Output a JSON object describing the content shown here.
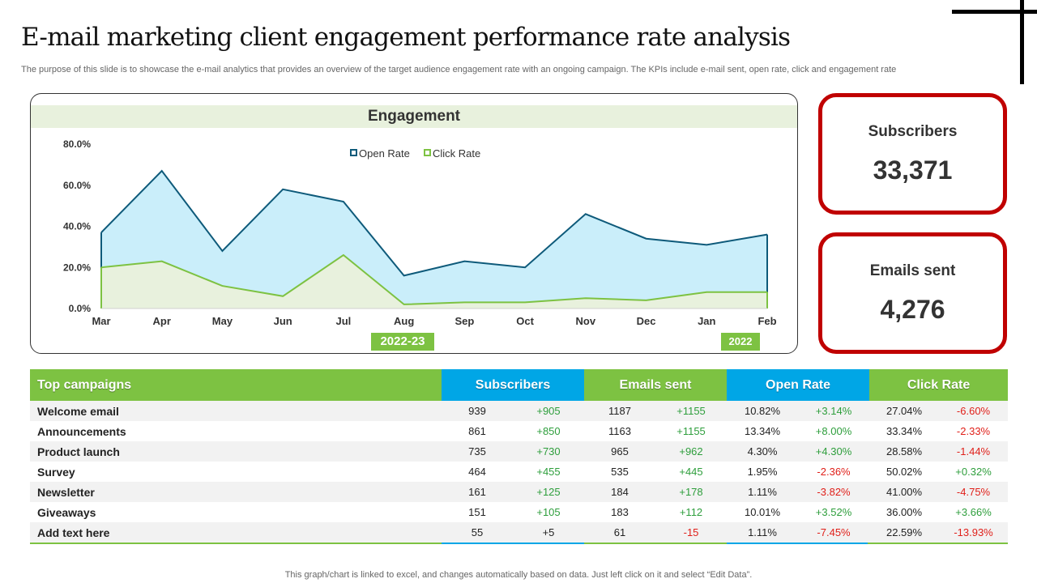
{
  "slide": {
    "title": "E-mail marketing client engagement performance rate analysis",
    "subtitle": "The purpose of this slide is to showcase the e-mail analytics that provides an overview of the target audience engagement rate with an ongoing campaign. The KPIs include e-mail sent, open rate, click and engagement rate",
    "footnote": "This graph/chart is linked to excel,  and changes automatically based on data. Just left click on it and select “Edit Data”."
  },
  "chart_data": {
    "type": "area",
    "title": "Engagement",
    "categories": [
      "Mar",
      "Apr",
      "May",
      "Jun",
      "Jul",
      "Aug",
      "Sep",
      "Oct",
      "Nov",
      "Dec",
      "Jan",
      "Feb"
    ],
    "series": [
      {
        "name": "Open Rate",
        "values": [
          37,
          67,
          28,
          58,
          52,
          16,
          23,
          20,
          46,
          34,
          31,
          36
        ],
        "color": "#0e5a7a",
        "fill": "#caeefa"
      },
      {
        "name": "Click Rate",
        "values": [
          20,
          23,
          11,
          6,
          26,
          2,
          3,
          3,
          5,
          4,
          8,
          8
        ],
        "color": "#7dc242",
        "fill": "#e8f1dd"
      }
    ],
    "yticks": [
      "0.0%",
      "20.0%",
      "40.0%",
      "60.0%",
      "80.0%"
    ],
    "ylim": [
      0,
      80
    ],
    "grid": false,
    "legend": "top-center",
    "periods": [
      "2022-23",
      "2022"
    ]
  },
  "kpis": {
    "subscribers_label": "Subscribers",
    "subscribers_value": "33,371",
    "emails_label": "Emails sent",
    "emails_value": "4,276"
  },
  "table": {
    "columns": [
      {
        "label": "Top campaigns",
        "color": "#7dc242"
      },
      {
        "label": "Subscribers",
        "color": "#00a6e6"
      },
      {
        "label": "Emails sent",
        "color": "#7dc242"
      },
      {
        "label": "Open Rate",
        "color": "#00a6e6"
      },
      {
        "label": "Click Rate",
        "color": "#7dc242"
      }
    ],
    "rows": [
      {
        "name": "Welcome email",
        "subs": "939",
        "subs_chg": "+905",
        "emails": "1187",
        "emails_chg": "+1155",
        "open": "10.82%",
        "open_chg": "+3.14%",
        "click": "27.04%",
        "click_chg": "-6.60%"
      },
      {
        "name": "Announcements",
        "subs": "861",
        "subs_chg": "+850",
        "emails": "1163",
        "emails_chg": "+1155",
        "open": "13.34%",
        "open_chg": "+8.00%",
        "click": "33.34%",
        "click_chg": "-2.33%"
      },
      {
        "name": "Product launch",
        "subs": "735",
        "subs_chg": "+730",
        "emails": "965",
        "emails_chg": "+962",
        "open": "4.30%",
        "open_chg": "+4.30%",
        "click": "28.58%",
        "click_chg": "-1.44%"
      },
      {
        "name": "Survey",
        "subs": "464",
        "subs_chg": "+455",
        "emails": "535",
        "emails_chg": "+445",
        "open": "1.95%",
        "open_chg": "-2.36%",
        "click": "50.02%",
        "click_chg": "+0.32%"
      },
      {
        "name": "Newsletter",
        "subs": "161",
        "subs_chg": "+125",
        "emails": "184",
        "emails_chg": "+178",
        "open": "1.11%",
        "open_chg": "-3.82%",
        "click": "41.00%",
        "click_chg": "-4.75%"
      },
      {
        "name": "Giveaways",
        "subs": "151",
        "subs_chg": "+105",
        "emails": "183",
        "emails_chg": "+112",
        "open": "10.01%",
        "open_chg": "+3.52%",
        "click": "36.00%",
        "click_chg": "+3.66%"
      },
      {
        "name": "Add text here",
        "subs": "55",
        "subs_chg": "+5",
        "emails": "61",
        "emails_chg": "-15",
        "open": "1.11%",
        "open_chg": "-7.45%",
        "click": "22.59%",
        "click_chg": "-13.93%"
      }
    ]
  }
}
